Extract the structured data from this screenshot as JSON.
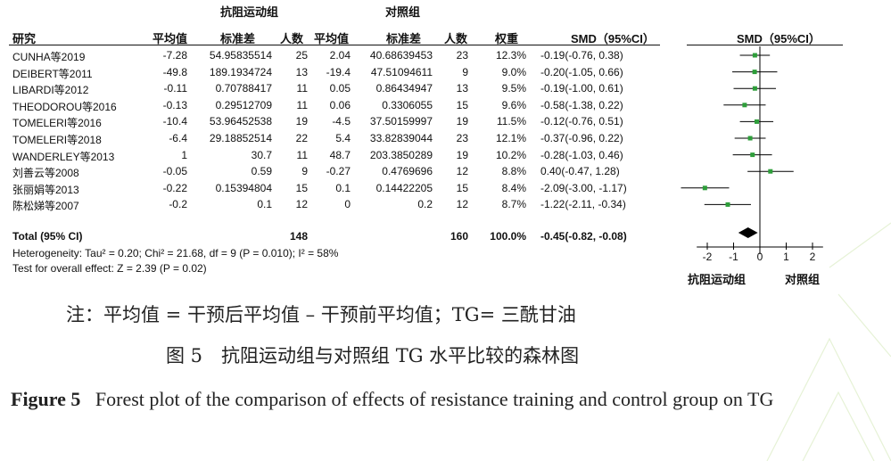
{
  "header": {
    "group_left": "抗阻运动组",
    "group_right": "对照组",
    "study": "研究",
    "mean_left": "平均值",
    "sd_left": "标准差",
    "n_left": "人数",
    "mean_right": "平均值",
    "sd_right": "标准差",
    "n_right": "人数",
    "weight": "权重",
    "smd": "SMD（95%CI）",
    "plot_smd": "SMD（95%CI）"
  },
  "rows": [
    {
      "study": "CUNHA等2019",
      "m1": "-7.28",
      "sd1": "54.95835514",
      "n1": "25",
      "m2": "2.04",
      "sd2": "40.68639453",
      "n2": "23",
      "w": "12.3%",
      "ci": "-0.19(-0.76, 0.38)"
    },
    {
      "study": "DEIBERT等2011",
      "m1": "-49.8",
      "sd1": "189.1934724",
      "n1": "13",
      "m2": "-19.4",
      "sd2": "47.51094611",
      "n2": "9",
      "w": "9.0%",
      "ci": "-0.20(-1.05, 0.66)"
    },
    {
      "study": "LIBARDI等2012",
      "m1": "-0.11",
      "sd1": "0.70788417",
      "n1": "11",
      "m2": "0.05",
      "sd2": "0.86434947",
      "n2": "13",
      "w": "9.5%",
      "ci": "-0.19(-1.00, 0.61)"
    },
    {
      "study": "THEODOROU等2016",
      "m1": "-0.13",
      "sd1": "0.29512709",
      "n1": "11",
      "m2": "0.06",
      "sd2": "0.3306055",
      "n2": "15",
      "w": "9.6%",
      "ci": "-0.58(-1.38, 0.22)"
    },
    {
      "study": "TOMELERI等2016",
      "m1": "-10.4",
      "sd1": "53.96452538",
      "n1": "19",
      "m2": "-4.5",
      "sd2": "37.50159997",
      "n2": "19",
      "w": "11.5%",
      "ci": "-0.12(-0.76, 0.51)"
    },
    {
      "study": "TOMELERI等2018",
      "m1": "-6.4",
      "sd1": "29.18852514",
      "n1": "22",
      "m2": "5.4",
      "sd2": "33.82839044",
      "n2": "23",
      "w": "12.1%",
      "ci": "-0.37(-0.96, 0.22)"
    },
    {
      "study": "WANDERLEY等2013",
      "m1": "1",
      "sd1": "30.7",
      "n1": "11",
      "m2": "48.7",
      "sd2": "203.3850289",
      "n2": "19",
      "w": "10.2%",
      "ci": "-0.28(-1.03, 0.46)"
    },
    {
      "study": "刘善云等2008",
      "m1": "-0.05",
      "sd1": "0.59",
      "n1": "9",
      "m2": "-0.27",
      "sd2": "0.4769696",
      "n2": "12",
      "w": "8.8%",
      "ci": "0.40(-0.47, 1.28)"
    },
    {
      "study": "张丽娟等2013",
      "m1": "-0.22",
      "sd1": "0.15394804",
      "n1": "15",
      "m2": "0.1",
      "sd2": "0.14422205",
      "n2": "15",
      "w": "8.4%",
      "ci": "-2.09(-3.00, -1.17)"
    },
    {
      "study": "陈松娣等2007",
      "m1": "-0.2",
      "sd1": "0.1",
      "n1": "12",
      "m2": "0",
      "sd2": "0.2",
      "n2": "12",
      "w": "8.7%",
      "ci": "-1.22(-2.11, -0.34)"
    }
  ],
  "total": {
    "label": "Total (95% CI)",
    "n1": "148",
    "n2": "160",
    "w": "100.0%",
    "ci": "-0.45(-0.82, -0.08)"
  },
  "heterogeneity": "Heterogeneity: Tau² = 0.20; Chi² = 21.68, df = 9 (P = 0.010); I² = 58%",
  "overall_test": "Test for overall effect: Z = 2.39 (P = 0.02)",
  "axis_labels": {
    "left": "抗阻运动组",
    "right": "对照组"
  },
  "note": "注：平均值 = 干预后平均值 – 干预前平均值；TG= 三酰甘油",
  "caption_cn": "图 5　抗阻运动组与对照组 TG 水平比较的森林图",
  "caption_en_bold": "Figure 5",
  "caption_en": "Forest plot of the comparison of effects of resistance training and control group on TG",
  "colors": {
    "marker": "#2e9e3a",
    "diamond": "#000000",
    "line": "#000000"
  },
  "chart_data": {
    "type": "scatter",
    "title": "",
    "xlabel": "",
    "ylabel": "",
    "xlim": [
      -3.4,
      2.5
    ],
    "ticks": [
      -2,
      -1,
      0,
      1,
      2
    ],
    "studies": [
      {
        "name": "CUNHA等2019",
        "smd": -0.19,
        "lo": -0.76,
        "hi": 0.38,
        "weight": 12.3
      },
      {
        "name": "DEIBERT等2011",
        "smd": -0.2,
        "lo": -1.05,
        "hi": 0.66,
        "weight": 9.0
      },
      {
        "name": "LIBARDI等2012",
        "smd": -0.19,
        "lo": -1.0,
        "hi": 0.61,
        "weight": 9.5
      },
      {
        "name": "THEODOROU等2016",
        "smd": -0.58,
        "lo": -1.38,
        "hi": 0.22,
        "weight": 9.6
      },
      {
        "name": "TOMELERI等2016",
        "smd": -0.12,
        "lo": -0.76,
        "hi": 0.51,
        "weight": 11.5
      },
      {
        "name": "TOMELERI等2018",
        "smd": -0.37,
        "lo": -0.96,
        "hi": 0.22,
        "weight": 12.1
      },
      {
        "name": "WANDERLEY等2013",
        "smd": -0.28,
        "lo": -1.03,
        "hi": 0.46,
        "weight": 10.2
      },
      {
        "name": "刘善云等2008",
        "smd": 0.4,
        "lo": -0.47,
        "hi": 1.28,
        "weight": 8.8
      },
      {
        "name": "张丽娟等2013",
        "smd": -2.09,
        "lo": -3.0,
        "hi": -1.17,
        "weight": 8.4
      },
      {
        "name": "陈松娣等2007",
        "smd": -1.22,
        "lo": -2.11,
        "hi": -0.34,
        "weight": 8.7
      }
    ],
    "pooled": {
      "smd": -0.45,
      "lo": -0.82,
      "hi": -0.08
    }
  }
}
